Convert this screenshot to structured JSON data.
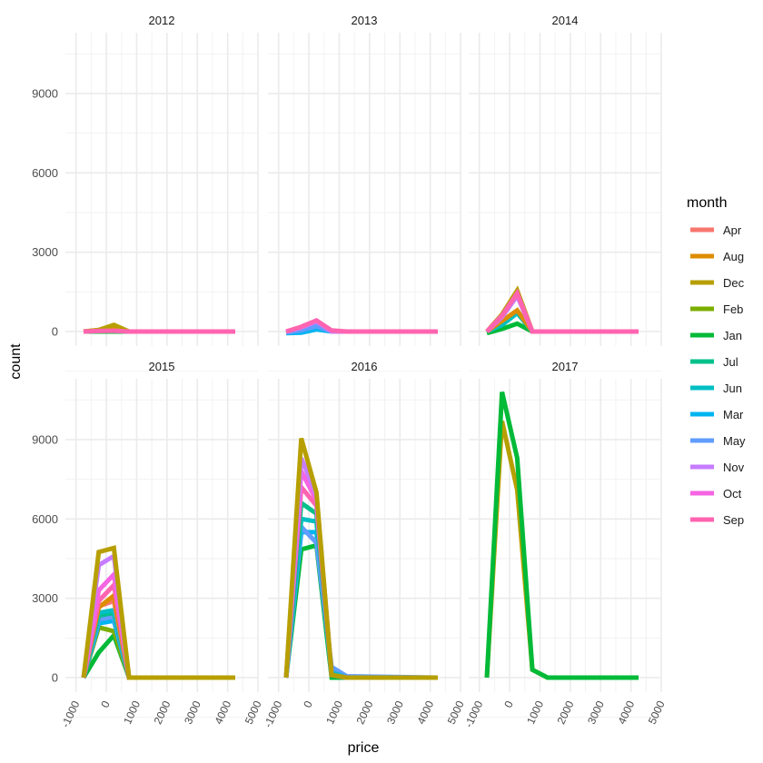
{
  "chart_data": {
    "type": "line",
    "facet_by": "year",
    "xlabel": "price",
    "ylabel": "count",
    "xlim": [
      -1350,
      5000
    ],
    "ylim": [
      -550,
      11300
    ],
    "x_ticks": [
      -1000,
      0,
      1000,
      2000,
      3000,
      4000,
      5000
    ],
    "x_tick_labels": [
      "-1000",
      "0",
      "1000",
      "2000",
      "3000",
      "4000",
      "5000"
    ],
    "y_ticks": [
      0,
      3000,
      6000,
      9000
    ],
    "y_tick_labels": [
      "0",
      "3000",
      "6000",
      "9000"
    ],
    "grid": true,
    "legend": {
      "title": "month",
      "position": "right",
      "entries": [
        "Apr",
        "Aug",
        "Dec",
        "Feb",
        "Jan",
        "Jul",
        "Jun",
        "Mar",
        "May",
        "Nov",
        "Oct",
        "Sep"
      ]
    },
    "colors": {
      "Apr": "#F8766D",
      "Aug": "#DE8C00",
      "Dec": "#B79F00",
      "Feb": "#7CAE00",
      "Jan": "#00BA38",
      "Jul": "#00C08B",
      "Jun": "#00BFC4",
      "Mar": "#00B4F0",
      "May": "#619CFF",
      "Nov": "#C77CFF",
      "Oct": "#F564E3",
      "Sep": "#FF64B0"
    },
    "facets": [
      {
        "title": "2012",
        "series": [
          {
            "name": "Jan",
            "x": [
              -750,
              -250,
              250,
              750,
              1250,
              4250
            ],
            "y": [
              0,
              0,
              0,
              0,
              0,
              0
            ]
          },
          {
            "name": "Aug",
            "x": [
              -750,
              -250,
              250,
              750,
              1250,
              4250
            ],
            "y": [
              0,
              50,
              120,
              0,
              0,
              0
            ]
          },
          {
            "name": "Dec",
            "x": [
              -750,
              -250,
              250,
              750,
              1250,
              4250
            ],
            "y": [
              0,
              60,
              250,
              0,
              0,
              0
            ]
          },
          {
            "name": "Sep",
            "x": [
              -750,
              -250,
              250,
              750,
              1250,
              4250
            ],
            "y": [
              0,
              20,
              30,
              0,
              0,
              0
            ]
          }
        ]
      },
      {
        "title": "2013",
        "series": [
          {
            "name": "Mar",
            "x": [
              -750,
              -250,
              250,
              750,
              1250,
              4250
            ],
            "y": [
              -60,
              -40,
              80,
              0,
              0,
              0
            ]
          },
          {
            "name": "May",
            "x": [
              -750,
              -250,
              250,
              750,
              1250,
              4250
            ],
            "y": [
              -40,
              50,
              200,
              0,
              0,
              0
            ]
          },
          {
            "name": "Nov",
            "x": [
              -750,
              -250,
              250,
              750,
              1250,
              4250
            ],
            "y": [
              0,
              150,
              380,
              0,
              0,
              0
            ]
          },
          {
            "name": "Sep",
            "x": [
              -750,
              -250,
              250,
              750,
              1250,
              4250
            ],
            "y": [
              0,
              180,
              420,
              40,
              0,
              0
            ]
          }
        ]
      },
      {
        "title": "2014",
        "series": [
          {
            "name": "Jan",
            "x": [
              -750,
              -250,
              250,
              750,
              1250,
              4250
            ],
            "y": [
              -60,
              100,
              300,
              0,
              0,
              0
            ]
          },
          {
            "name": "Jun",
            "x": [
              -750,
              -250,
              250,
              750,
              1250,
              4250
            ],
            "y": [
              0,
              250,
              700,
              0,
              0,
              0
            ]
          },
          {
            "name": "Aug",
            "x": [
              -750,
              -250,
              250,
              750,
              1250,
              4250
            ],
            "y": [
              0,
              400,
              800,
              0,
              0,
              0
            ]
          },
          {
            "name": "Nov",
            "x": [
              -750,
              -250,
              250,
              750,
              1250,
              4250
            ],
            "y": [
              0,
              550,
              1350,
              0,
              0,
              0
            ]
          },
          {
            "name": "Dec",
            "x": [
              -750,
              -250,
              250,
              750,
              1250,
              4250
            ],
            "y": [
              0,
              650,
              1550,
              0,
              0,
              0
            ]
          },
          {
            "name": "Sep",
            "x": [
              -750,
              -250,
              250,
              750,
              1250,
              4250
            ],
            "y": [
              0,
              600,
              1450,
              0,
              0,
              0
            ]
          }
        ]
      },
      {
        "title": "2015",
        "series": [
          {
            "name": "Jan",
            "x": [
              -750,
              -250,
              250,
              750,
              1250,
              4250
            ],
            "y": [
              0,
              950,
              1600,
              0,
              0,
              0
            ]
          },
          {
            "name": "Feb",
            "x": [
              -750,
              -250,
              250,
              750,
              1250,
              4250
            ],
            "y": [
              0,
              1900,
              1750,
              0,
              0,
              0
            ]
          },
          {
            "name": "Mar",
            "x": [
              -750,
              -250,
              250,
              750,
              1250,
              4250
            ],
            "y": [
              0,
              2050,
              2150,
              0,
              0,
              0
            ]
          },
          {
            "name": "May",
            "x": [
              -750,
              -250,
              250,
              750,
              1250,
              4250
            ],
            "y": [
              0,
              2200,
              2300,
              0,
              0,
              0
            ]
          },
          {
            "name": "Jul",
            "x": [
              -750,
              -250,
              250,
              750,
              1250,
              4250
            ],
            "y": [
              0,
              2350,
              2450,
              0,
              0,
              0
            ]
          },
          {
            "name": "Jun",
            "x": [
              -750,
              -250,
              250,
              750,
              1250,
              4250
            ],
            "y": [
              0,
              2450,
              2550,
              0,
              0,
              0
            ]
          },
          {
            "name": "Apr",
            "x": [
              -750,
              -250,
              250,
              750,
              1250,
              4250
            ],
            "y": [
              0,
              2700,
              2900,
              0,
              0,
              0
            ]
          },
          {
            "name": "Aug",
            "x": [
              -750,
              -250,
              250,
              750,
              1250,
              4250
            ],
            "y": [
              0,
              2650,
              3100,
              0,
              0,
              0
            ]
          },
          {
            "name": "Sep",
            "x": [
              -750,
              -250,
              250,
              750,
              1250,
              4250
            ],
            "y": [
              0,
              2900,
              3500,
              0,
              0,
              0
            ]
          },
          {
            "name": "Oct",
            "x": [
              -750,
              -250,
              250,
              750,
              1250,
              4250
            ],
            "y": [
              0,
              3300,
              3900,
              0,
              0,
              0
            ]
          },
          {
            "name": "Nov",
            "x": [
              -750,
              -250,
              250,
              750,
              1250,
              4250
            ],
            "y": [
              0,
              4250,
              4600,
              0,
              0,
              0
            ]
          },
          {
            "name": "Dec",
            "x": [
              -750,
              -250,
              250,
              750,
              1250,
              4250
            ],
            "y": [
              0,
              4750,
              4900,
              0,
              0,
              0
            ]
          }
        ]
      },
      {
        "title": "2016",
        "series": [
          {
            "name": "Jan",
            "x": [
              -750,
              -250,
              250,
              750,
              1250,
              4250
            ],
            "y": [
              0,
              4850,
              5000,
              0,
              0,
              0
            ]
          },
          {
            "name": "Mar",
            "x": [
              -750,
              -250,
              250,
              750,
              1250,
              4250
            ],
            "y": [
              0,
              5500,
              5500,
              150,
              0,
              0
            ]
          },
          {
            "name": "May",
            "x": [
              -750,
              -250,
              250,
              750,
              1250,
              4250
            ],
            "y": [
              0,
              5700,
              5100,
              400,
              50,
              0
            ]
          },
          {
            "name": "Jun",
            "x": [
              -750,
              -250,
              250,
              750,
              1250,
              4250
            ],
            "y": [
              0,
              6000,
              5900,
              200,
              0,
              0
            ]
          },
          {
            "name": "Jul",
            "x": [
              -750,
              -250,
              250,
              750,
              1250,
              4250
            ],
            "y": [
              0,
              6600,
              6200,
              100,
              0,
              0
            ]
          },
          {
            "name": "Sep",
            "x": [
              -750,
              -250,
              250,
              750,
              1250,
              4250
            ],
            "y": [
              0,
              7200,
              6500,
              100,
              0,
              0
            ]
          },
          {
            "name": "Oct",
            "x": [
              -750,
              -250,
              250,
              750,
              1250,
              4250
            ],
            "y": [
              0,
              7800,
              6700,
              100,
              0,
              0
            ]
          },
          {
            "name": "Nov",
            "x": [
              -750,
              -250,
              250,
              750,
              1250,
              4250
            ],
            "y": [
              0,
              8300,
              6900,
              100,
              0,
              0
            ]
          },
          {
            "name": "Dec",
            "x": [
              -750,
              -250,
              250,
              750,
              1250,
              4250
            ],
            "y": [
              0,
              9050,
              7000,
              100,
              0,
              0
            ]
          }
        ]
      },
      {
        "title": "2017",
        "series": [
          {
            "name": "Dec",
            "x": [
              -750,
              -250,
              250,
              750,
              1250,
              4250
            ],
            "y": [
              0,
              9700,
              7100,
              300,
              0,
              0
            ]
          },
          {
            "name": "Jan",
            "x": [
              -750,
              -250,
              250,
              750,
              1250,
              4250
            ],
            "y": [
              0,
              10800,
              8300,
              300,
              0,
              0
            ]
          }
        ]
      }
    ]
  }
}
